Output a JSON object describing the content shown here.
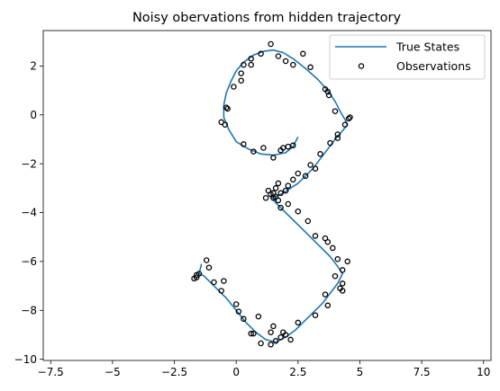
{
  "chart_data": {
    "type": "scatter",
    "title": "Noisy obervations from hidden trajectory",
    "xlabel": "",
    "ylabel": "",
    "xlim": [
      -7.8,
      10.3
    ],
    "ylim": [
      -10.05,
      3.45
    ],
    "xticks": [
      -7.5,
      -5.0,
      -2.5,
      0.0,
      2.5,
      5.0,
      7.5,
      10.0
    ],
    "yticks": [
      -10,
      -8,
      -6,
      -4,
      -2,
      0,
      2
    ],
    "grid": false,
    "legend_position": "top-right",
    "series": [
      {
        "name": "True States",
        "kind": "line",
        "color": "#1f77b4",
        "x": [
          2.5,
          2.3,
          2.0,
          1.5,
          1.0,
          0.5,
          0.0,
          -0.3,
          -0.5,
          -0.5,
          -0.4,
          -0.2,
          0.0,
          0.3,
          0.7,
          1.1,
          1.5,
          1.9,
          2.3,
          2.8,
          3.3,
          3.7,
          4.0,
          4.2,
          4.4,
          4.5,
          4.3,
          4.0,
          3.7,
          3.4,
          3.1,
          2.8,
          2.5,
          2.2,
          1.9,
          1.6,
          1.4,
          1.6,
          1.9,
          2.2,
          2.6,
          3.0,
          3.4,
          3.8,
          4.1,
          4.3,
          4.1,
          3.8,
          3.5,
          3.2,
          2.8,
          2.4,
          2.0,
          1.6,
          1.2,
          0.8,
          0.4,
          0.0,
          -0.4,
          -0.8,
          -1.1,
          -1.3,
          -1.5,
          -1.4
        ],
        "y": [
          -0.9,
          -1.3,
          -1.55,
          -1.65,
          -1.6,
          -1.4,
          -1.1,
          -0.6,
          -0.1,
          0.4,
          0.9,
          1.4,
          1.8,
          2.15,
          2.45,
          2.6,
          2.65,
          2.55,
          2.3,
          1.9,
          1.45,
          1.0,
          0.55,
          0.15,
          -0.2,
          -0.4,
          -0.65,
          -1.0,
          -1.4,
          -1.8,
          -2.2,
          -2.5,
          -2.8,
          -3.0,
          -3.2,
          -3.35,
          -3.3,
          -3.6,
          -3.9,
          -4.2,
          -4.6,
          -5.0,
          -5.4,
          -5.8,
          -6.2,
          -6.5,
          -6.9,
          -7.3,
          -7.7,
          -8.0,
          -8.4,
          -8.8,
          -9.1,
          -9.3,
          -9.2,
          -8.9,
          -8.5,
          -8.0,
          -7.5,
          -7.1,
          -6.8,
          -6.6,
          -6.5,
          -6.1
        ]
      },
      {
        "name": "Observations",
        "kind": "scatter",
        "color": "#000000",
        "marker": "open-circle",
        "points": [
          [
            1.4,
            2.9
          ],
          [
            1.7,
            2.4
          ],
          [
            2.0,
            2.2
          ],
          [
            2.7,
            2.5
          ],
          [
            1.0,
            2.5
          ],
          [
            0.6,
            2.3
          ],
          [
            0.6,
            2.05
          ],
          [
            0.3,
            2.05
          ],
          [
            0.2,
            1.7
          ],
          [
            0.2,
            1.4
          ],
          [
            -0.1,
            1.15
          ],
          [
            -0.4,
            0.3
          ],
          [
            -0.35,
            0.25
          ],
          [
            -0.6,
            -0.3
          ],
          [
            -0.45,
            -0.4
          ],
          [
            0.3,
            -1.2
          ],
          [
            0.7,
            -1.5
          ],
          [
            1.1,
            -1.35
          ],
          [
            1.5,
            -1.75
          ],
          [
            1.8,
            -1.45
          ],
          [
            1.9,
            -1.35
          ],
          [
            2.1,
            -1.3
          ],
          [
            2.3,
            -1.25
          ],
          [
            2.3,
            2.05
          ],
          [
            3.0,
            1.95
          ],
          [
            3.6,
            1.05
          ],
          [
            3.7,
            0.95
          ],
          [
            3.75,
            0.8
          ],
          [
            4.0,
            0.15
          ],
          [
            4.4,
            -0.4
          ],
          [
            4.6,
            -0.1
          ],
          [
            4.55,
            -0.15
          ],
          [
            4.1,
            -0.8
          ],
          [
            4.1,
            -0.95
          ],
          [
            3.8,
            -1.15
          ],
          [
            3.4,
            -1.6
          ],
          [
            3.2,
            -2.2
          ],
          [
            3.0,
            -2.05
          ],
          [
            2.8,
            -2.5
          ],
          [
            2.5,
            -2.4
          ],
          [
            2.3,
            -2.65
          ],
          [
            2.1,
            -2.9
          ],
          [
            2.0,
            -3.1
          ],
          [
            1.8,
            -3.2
          ],
          [
            1.7,
            -2.8
          ],
          [
            1.6,
            -3.0
          ],
          [
            1.5,
            -3.2
          ],
          [
            1.4,
            -3.25
          ],
          [
            1.3,
            -3.1
          ],
          [
            1.2,
            -3.4
          ],
          [
            1.5,
            -3.4
          ],
          [
            1.6,
            -3.35
          ],
          [
            1.7,
            -3.5
          ],
          [
            1.8,
            -3.8
          ],
          [
            2.1,
            -3.65
          ],
          [
            2.5,
            -3.95
          ],
          [
            2.9,
            -4.35
          ],
          [
            3.2,
            -4.95
          ],
          [
            3.6,
            -5.05
          ],
          [
            3.7,
            -5.2
          ],
          [
            3.9,
            -5.45
          ],
          [
            4.1,
            -5.9
          ],
          [
            4.3,
            -6.35
          ],
          [
            4.5,
            -6.0
          ],
          [
            4.3,
            -6.9
          ],
          [
            4.2,
            -7.1
          ],
          [
            4.0,
            -6.6
          ],
          [
            4.3,
            -7.2
          ],
          [
            3.6,
            -7.35
          ],
          [
            3.7,
            -7.8
          ],
          [
            3.2,
            -8.2
          ],
          [
            2.5,
            -8.5
          ],
          [
            2.2,
            -9.2
          ],
          [
            2.0,
            -9.0
          ],
          [
            1.9,
            -8.9
          ],
          [
            1.8,
            -9.1
          ],
          [
            1.6,
            -9.25
          ],
          [
            1.5,
            -8.65
          ],
          [
            1.4,
            -8.9
          ],
          [
            1.4,
            -9.4
          ],
          [
            1.0,
            -9.35
          ],
          [
            0.9,
            -8.25
          ],
          [
            0.7,
            -8.95
          ],
          [
            0.6,
            -8.95
          ],
          [
            0.3,
            -8.35
          ],
          [
            0.1,
            -8.05
          ],
          [
            0.0,
            -7.75
          ],
          [
            -0.5,
            -6.8
          ],
          [
            -0.9,
            -6.85
          ],
          [
            -1.1,
            -6.25
          ],
          [
            -1.2,
            -5.95
          ],
          [
            -1.5,
            -6.5
          ],
          [
            -1.6,
            -6.65
          ],
          [
            -1.7,
            -6.7
          ],
          [
            -1.6,
            -6.55
          ],
          [
            -0.6,
            -7.2
          ]
        ]
      }
    ]
  }
}
